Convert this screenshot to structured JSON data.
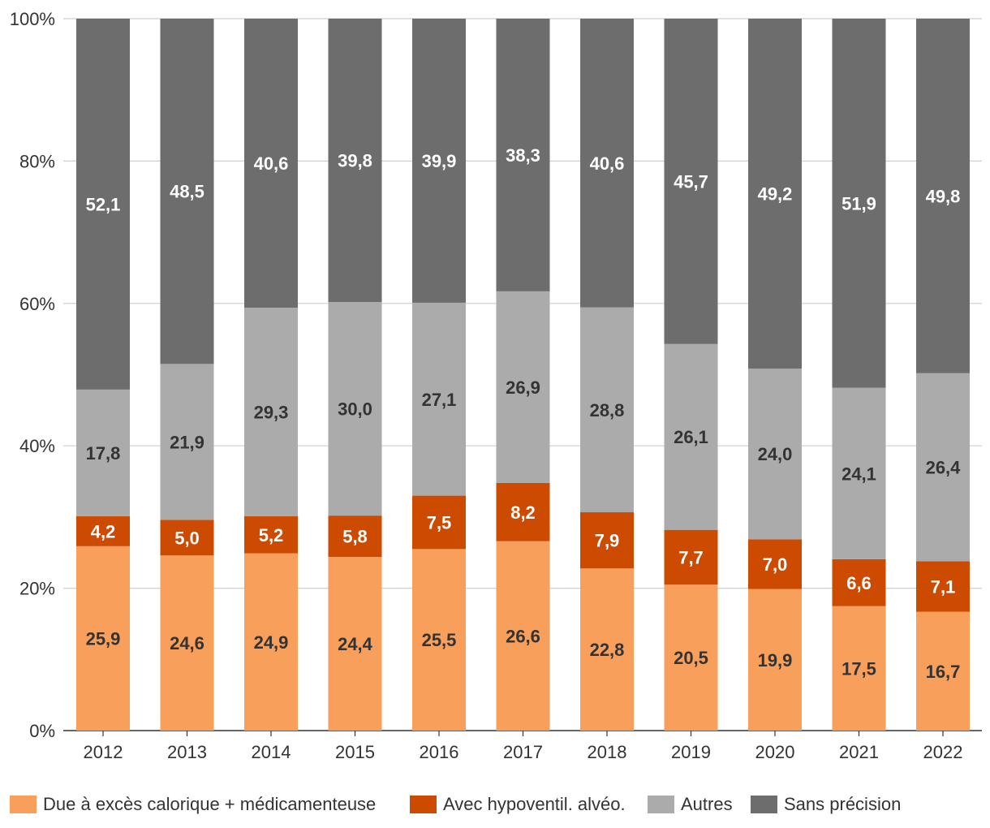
{
  "chart_data": {
    "type": "bar",
    "stacked": true,
    "normalized": true,
    "title": "",
    "xlabel": "",
    "ylabel": "",
    "ylim": [
      0,
      100
    ],
    "y_ticks": [
      "0%",
      "20%",
      "40%",
      "60%",
      "80%",
      "100%"
    ],
    "y_tick_values": [
      0,
      20,
      40,
      60,
      80,
      100
    ],
    "grid": true,
    "legend_position": "bottom",
    "categories": [
      "2012",
      "2013",
      "2014",
      "2015",
      "2016",
      "2017",
      "2018",
      "2019",
      "2020",
      "2021",
      "2022"
    ],
    "series": [
      {
        "name": "Due à excès calorique + médicamenteuse",
        "color": "#F79F5B",
        "label_color": "#333333",
        "values": [
          25.9,
          24.6,
          24.9,
          24.4,
          25.5,
          26.6,
          22.8,
          20.5,
          19.9,
          17.5,
          16.7
        ],
        "labels": [
          "25,9",
          "24,6",
          "24,9",
          "24,4",
          "25,5",
          "26,6",
          "22,8",
          "20,5",
          "19,9",
          "17,5",
          "16,7"
        ]
      },
      {
        "name": "Avec hypoventil. alvéo.",
        "color": "#CC4B00",
        "label_color": "#ffffff",
        "values": [
          4.2,
          5.0,
          5.2,
          5.8,
          7.5,
          8.2,
          7.9,
          7.7,
          7.0,
          6.6,
          7.1
        ],
        "labels": [
          "4,2",
          "5,0",
          "5,2",
          "5,8",
          "7,5",
          "8,2",
          "7,9",
          "7,7",
          "7,0",
          "6,6",
          "7,1"
        ]
      },
      {
        "name": "Autres",
        "color": "#ABABAB",
        "label_color": "#333333",
        "values": [
          17.8,
          21.9,
          29.3,
          30.0,
          27.1,
          26.9,
          28.8,
          26.1,
          24.0,
          24.1,
          26.4
        ],
        "labels": [
          "17,8",
          "21,9",
          "29,3",
          "30,0",
          "27,1",
          "26,9",
          "28,8",
          "26,1",
          "24,0",
          "24,1",
          "26,4"
        ]
      },
      {
        "name": "Sans précision",
        "color": "#6D6D6D",
        "label_color": "#ffffff",
        "values": [
          52.1,
          48.5,
          40.6,
          39.8,
          39.9,
          38.3,
          40.6,
          45.7,
          49.2,
          51.9,
          49.8
        ],
        "labels": [
          "52,1",
          "48,5",
          "40,6",
          "39,8",
          "39,9",
          "38,3",
          "40,6",
          "45,7",
          "49,2",
          "51,9",
          "49,8"
        ]
      }
    ]
  }
}
